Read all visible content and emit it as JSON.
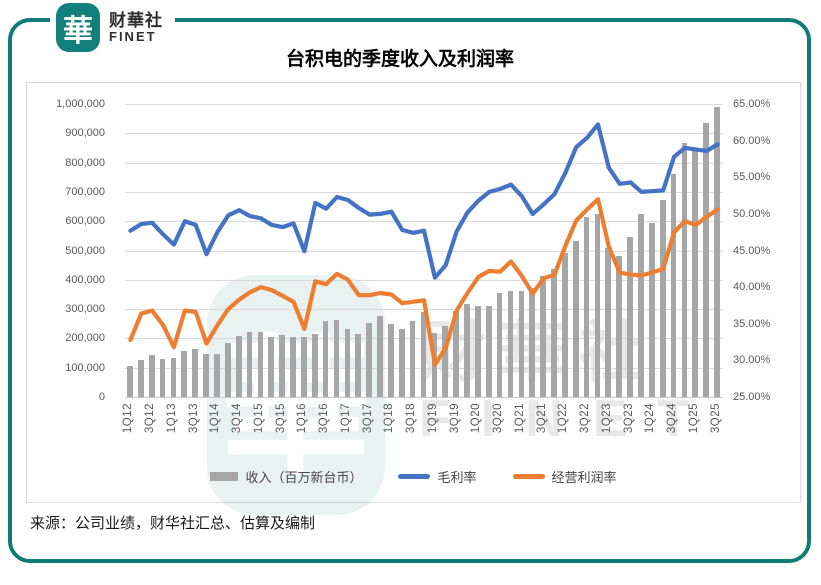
{
  "brand": {
    "logo_char": "華",
    "name_cn": "财華社",
    "name_en": "FINET"
  },
  "title": "台积电的季度收入及利润率",
  "source": "来源：公司业绩，财华社汇总、估算及编制",
  "watermark": {
    "logo_char": "華",
    "text_cn": "財華社",
    "text_en": "FINET"
  },
  "colors": {
    "border_teal": "#0f7c77",
    "bar_gray": "#a6a6a6",
    "gross_blue": "#4472c4",
    "operating_orange": "#ed7d31",
    "gridline": "#d9d9d9",
    "axis_text": "#595959"
  },
  "chart_data": {
    "type": "bar",
    "subtype": "bar+line dual-axis",
    "title": "台积电的季度收入及利润率",
    "categories": [
      "1Q12",
      "2Q12",
      "3Q12",
      "4Q12",
      "1Q13",
      "2Q13",
      "3Q13",
      "4Q13",
      "1Q14",
      "2Q14",
      "3Q14",
      "4Q14",
      "1Q15",
      "2Q15",
      "3Q15",
      "4Q15",
      "1Q16",
      "2Q16",
      "3Q16",
      "4Q16",
      "1Q17",
      "2Q17",
      "3Q17",
      "4Q17",
      "1Q18",
      "2Q18",
      "3Q18",
      "4Q18",
      "1Q19",
      "2Q19",
      "3Q19",
      "4Q19",
      "1Q20",
      "2Q20",
      "3Q20",
      "4Q20",
      "1Q21",
      "2Q21",
      "3Q21",
      "4Q21",
      "1Q22",
      "2Q22",
      "3Q22",
      "4Q22",
      "1Q23",
      "2Q23",
      "3Q23",
      "4Q23",
      "1Q24",
      "2Q24",
      "3Q24",
      "4Q24",
      "1Q25",
      "2Q25",
      "3Q25"
    ],
    "x_tick_labels": [
      "1Q12",
      "3Q12",
      "1Q13",
      "3Q13",
      "1Q14",
      "3Q14",
      "1Q15",
      "3Q15",
      "1Q16",
      "3Q16",
      "1Q17",
      "3Q17",
      "1Q18",
      "3Q18",
      "1Q19",
      "3Q19",
      "1Q20",
      "3Q20",
      "1Q21",
      "3Q21",
      "1Q22",
      "3Q22",
      "1Q23",
      "3Q23",
      "1Q24",
      "3Q24",
      "1Q25",
      "3Q25"
    ],
    "x_label_every": 2,
    "series": [
      {
        "name": "收入（百万新台币）",
        "type": "bar",
        "axis": "left",
        "color": "#a6a6a6",
        "values": [
          105366,
          128096,
          141938,
          131305,
          132757,
          155887,
          162577,
          145807,
          148222,
          183021,
          209047,
          222520,
          222031,
          205440,
          212506,
          203521,
          203495,
          215854,
          260427,
          262227,
          233914,
          213855,
          252109,
          277570,
          248079,
          233276,
          260348,
          289770,
          218704,
          240998,
          293045,
          317237,
          310597,
          310699,
          356426,
          361533,
          362410,
          372145,
          414671,
          438189,
          491076,
          534141,
          613143,
          625532,
          508633,
          480841,
          546733,
          625529,
          592644,
          673510,
          759692,
          868461,
          839254,
          933792,
          989918
        ]
      },
      {
        "name": "毛利率",
        "type": "line",
        "axis": "right",
        "color": "#4472c4",
        "values": [
          47.7,
          48.6,
          48.8,
          47.2,
          45.8,
          49.0,
          48.5,
          44.5,
          47.5,
          49.8,
          50.5,
          49.7,
          49.4,
          48.5,
          48.2,
          48.7,
          44.9,
          51.5,
          50.7,
          52.3,
          51.9,
          50.8,
          49.9,
          50.0,
          50.3,
          47.8,
          47.4,
          47.7,
          41.3,
          43.0,
          47.6,
          50.2,
          51.8,
          53.0,
          53.4,
          54.0,
          52.4,
          50.0,
          51.3,
          52.7,
          55.6,
          59.1,
          60.4,
          62.2,
          56.3,
          54.1,
          54.3,
          53.0,
          53.1,
          53.2,
          57.8,
          59.0,
          58.8,
          58.6,
          59.5
        ]
      },
      {
        "name": "经营利润率",
        "type": "line",
        "axis": "right",
        "color": "#ed7d31",
        "values": [
          32.8,
          36.4,
          36.8,
          34.8,
          31.8,
          36.8,
          36.6,
          32.3,
          34.8,
          37.0,
          38.3,
          39.3,
          40.0,
          39.6,
          38.8,
          38.0,
          34.3,
          40.8,
          40.4,
          41.8,
          41.0,
          38.9,
          38.9,
          39.2,
          39.0,
          37.8,
          38.0,
          38.2,
          29.4,
          31.7,
          36.8,
          39.2,
          41.4,
          42.2,
          42.1,
          43.5,
          41.5,
          39.1,
          41.2,
          41.7,
          45.6,
          49.1,
          50.6,
          52.0,
          45.5,
          42.0,
          41.7,
          41.6,
          42.0,
          42.5,
          47.5,
          49.0,
          48.5,
          49.6,
          50.6
        ]
      }
    ],
    "left_axis": {
      "min": 0,
      "max": 1000000,
      "step": 100000,
      "tick_labels": [
        "1,000,000",
        "900,000",
        "800,000",
        "700,000",
        "600,000",
        "500,000",
        "400,000",
        "300,000",
        "200,000",
        "100,000",
        "0"
      ]
    },
    "right_axis": {
      "min": 25,
      "max": 65,
      "step": 5,
      "tick_labels": [
        "65.00%",
        "60.00%",
        "55.00%",
        "50.00%",
        "45.00%",
        "40.00%",
        "35.00%",
        "30.00%",
        "25.00%"
      ]
    },
    "grid": true,
    "legend_position": "bottom"
  }
}
